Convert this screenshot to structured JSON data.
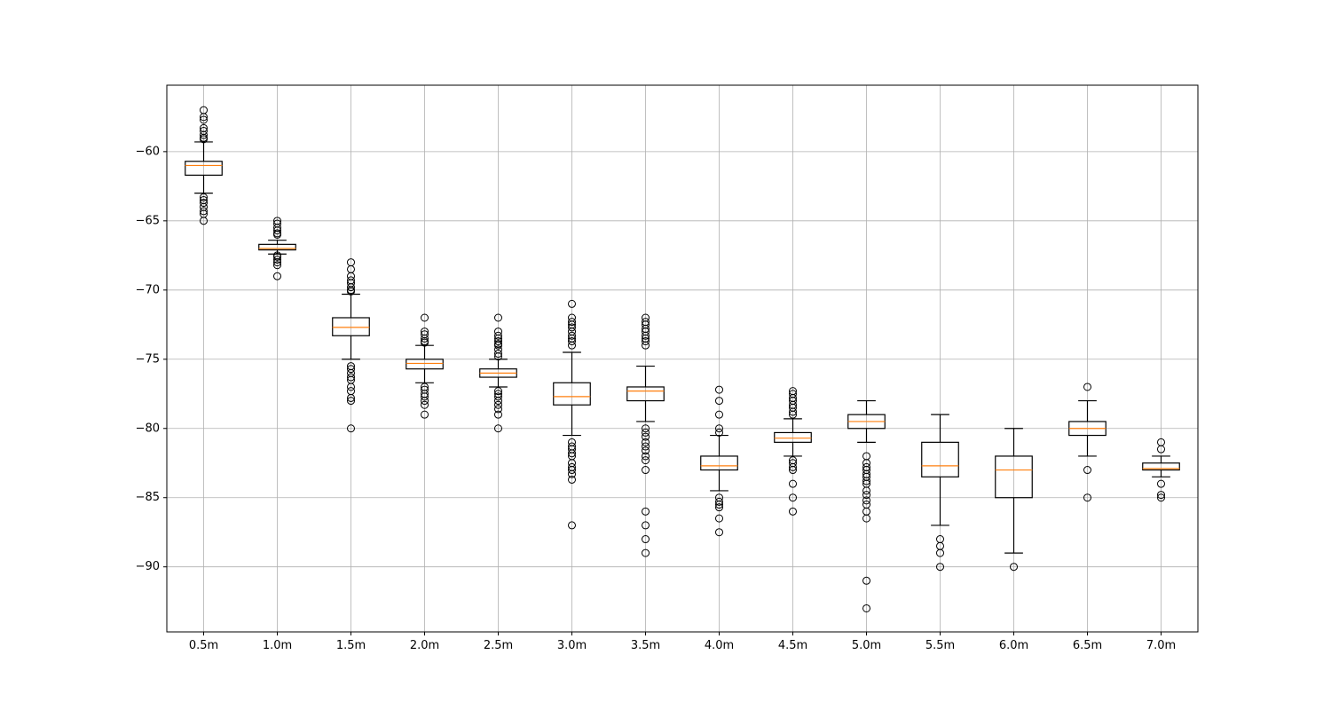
{
  "chart_data": {
    "type": "box",
    "title": "",
    "xlabel": "",
    "ylabel": "",
    "ylim": [
      -94.7,
      -55.2
    ],
    "yticks": [
      -60,
      -65,
      -70,
      -75,
      -80,
      -85,
      -90
    ],
    "grid": true,
    "colors": {
      "box": "#000000",
      "median": "#ff7f0e",
      "grid": "#b0b0b0"
    },
    "categories": [
      "0.5m",
      "1.0m",
      "1.5m",
      "2.0m",
      "2.5m",
      "3.0m",
      "3.5m",
      "4.0m",
      "4.5m",
      "5.0m",
      "5.5m",
      "6.0m",
      "6.5m",
      "7.0m"
    ],
    "boxes": [
      {
        "q1": -61.7,
        "median": -61.0,
        "q3": -60.7,
        "whisker_low": -63.0,
        "whisker_high": -59.3,
        "outliers": [
          -57.0,
          -57.5,
          -57.7,
          -58.3,
          -58.5,
          -58.8,
          -59.0,
          -59.1,
          -63.3,
          -63.5,
          -63.7,
          -64.0,
          -64.3,
          -64.5,
          -65.0
        ]
      },
      {
        "q1": -67.1,
        "median": -67.0,
        "q3": -66.7,
        "whisker_low": -67.4,
        "whisker_high": -66.4,
        "outliers": [
          -65.0,
          -65.2,
          -65.5,
          -65.7,
          -65.9,
          -66.0,
          -67.5,
          -67.6,
          -67.8,
          -68.0,
          -68.2,
          -69.0
        ]
      },
      {
        "q1": -73.3,
        "median": -72.7,
        "q3": -72.0,
        "whisker_low": -75.0,
        "whisker_high": -70.3,
        "outliers": [
          -68.0,
          -68.5,
          -69.0,
          -69.3,
          -69.5,
          -69.8,
          -70.0,
          -70.1,
          -75.5,
          -75.7,
          -76.0,
          -76.3,
          -76.5,
          -77.0,
          -77.3,
          -77.8,
          -78.0,
          -80.0
        ]
      },
      {
        "q1": -75.7,
        "median": -75.3,
        "q3": -75.0,
        "whisker_low": -76.7,
        "whisker_high": -74.0,
        "outliers": [
          -72.0,
          -73.0,
          -73.2,
          -73.5,
          -73.7,
          -73.8,
          -77.0,
          -77.2,
          -77.5,
          -77.7,
          -78.0,
          -78.3,
          -79.0
        ]
      },
      {
        "q1": -76.3,
        "median": -76.0,
        "q3": -75.7,
        "whisker_low": -77.0,
        "whisker_high": -75.0,
        "outliers": [
          -72.0,
          -73.0,
          -73.3,
          -73.5,
          -73.7,
          -73.9,
          -74.0,
          -74.3,
          -74.6,
          -74.8,
          -77.3,
          -77.5,
          -77.7,
          -78.0,
          -78.3,
          -78.6,
          -79.0,
          -80.0
        ]
      },
      {
        "q1": -78.3,
        "median": -77.7,
        "q3": -76.7,
        "whisker_low": -80.5,
        "whisker_high": -74.5,
        "outliers": [
          -71.0,
          -72.0,
          -72.3,
          -72.5,
          -72.7,
          -73.0,
          -73.3,
          -73.5,
          -73.7,
          -74.0,
          -81.0,
          -81.3,
          -81.5,
          -81.8,
          -82.0,
          -82.5,
          -82.8,
          -83.0,
          -83.3,
          -83.7,
          -87.0
        ]
      },
      {
        "q1": -78.0,
        "median": -77.3,
        "q3": -77.0,
        "whisker_low": -79.5,
        "whisker_high": -75.5,
        "outliers": [
          -72.0,
          -72.3,
          -72.5,
          -72.8,
          -73.0,
          -73.3,
          -73.5,
          -73.7,
          -74.0,
          -80.0,
          -80.3,
          -80.6,
          -81.0,
          -81.3,
          -81.6,
          -82.0,
          -82.3,
          -83.0,
          -86.0,
          -87.0,
          -88.0,
          -89.0
        ]
      },
      {
        "q1": -83.0,
        "median": -82.7,
        "q3": -82.0,
        "whisker_low": -84.5,
        "whisker_high": -80.5,
        "outliers": [
          -77.2,
          -78.0,
          -79.0,
          -80.0,
          -80.3,
          -85.0,
          -85.3,
          -85.5,
          -85.7,
          -86.5,
          -87.5
        ]
      },
      {
        "q1": -81.0,
        "median": -80.7,
        "q3": -80.3,
        "whisker_low": -82.0,
        "whisker_high": -79.3,
        "outliers": [
          -77.3,
          -77.5,
          -77.8,
          -78.0,
          -78.3,
          -78.5,
          -78.8,
          -79.0,
          -82.3,
          -82.5,
          -82.8,
          -83.0,
          -84.0,
          -85.0,
          -86.0
        ]
      },
      {
        "q1": -80.0,
        "median": -79.5,
        "q3": -79.0,
        "whisker_low": -81.0,
        "whisker_high": -78.0,
        "outliers": [
          -82.0,
          -82.5,
          -82.8,
          -83.0,
          -83.3,
          -83.5,
          -83.8,
          -84.0,
          -84.5,
          -84.8,
          -85.2,
          -85.5,
          -86.0,
          -86.5,
          -91.0,
          -93.0
        ]
      },
      {
        "q1": -83.5,
        "median": -82.7,
        "q3": -81.0,
        "whisker_low": -87.0,
        "whisker_high": -79.0,
        "outliers": [
          -88.0,
          -88.5,
          -89.0,
          -90.0
        ]
      },
      {
        "q1": -85.0,
        "median": -83.0,
        "q3": -82.0,
        "whisker_low": -89.0,
        "whisker_high": -80.0,
        "outliers": [
          -90.0
        ]
      },
      {
        "q1": -80.5,
        "median": -80.0,
        "q3": -79.5,
        "whisker_low": -82.0,
        "whisker_high": -78.0,
        "outliers": [
          -77.0,
          -83.0,
          -85.0
        ]
      },
      {
        "q1": -83.0,
        "median": -82.9,
        "q3": -82.5,
        "whisker_low": -83.5,
        "whisker_high": -82.0,
        "outliers": [
          -81.0,
          -81.5,
          -84.0,
          -84.8,
          -85.0
        ]
      }
    ]
  }
}
